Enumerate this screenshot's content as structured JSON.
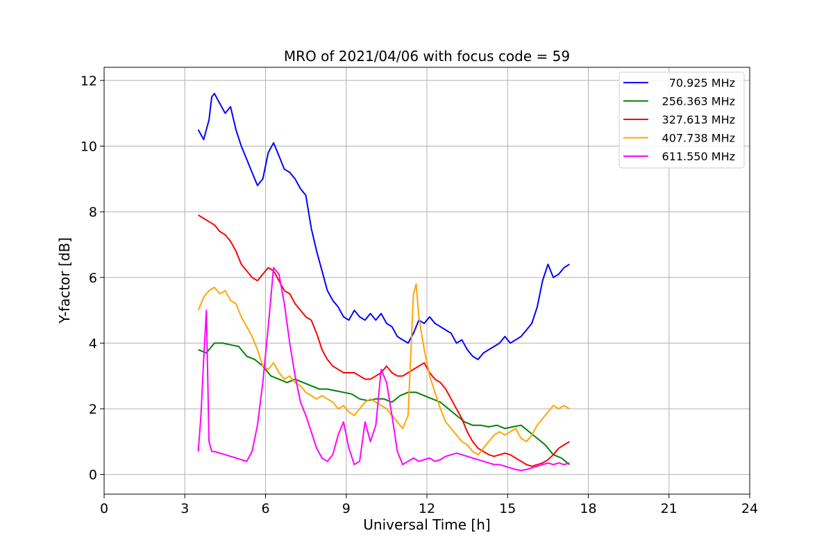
{
  "chart_data": {
    "type": "line",
    "title": "MRO of 2021/04/06 with focus code = 59",
    "xlabel": "Universal Time [h]",
    "ylabel": "Y-factor [dB]",
    "xlim": [
      0,
      24
    ],
    "ylim": [
      -0.6,
      12.4
    ],
    "xticks": [
      0,
      3,
      6,
      9,
      12,
      15,
      18,
      21,
      24
    ],
    "yticks": [
      0,
      2,
      4,
      6,
      8,
      10,
      12
    ],
    "grid": true,
    "legend_position": "upper right",
    "series": [
      {
        "name": "70.925 MHz",
        "color": "#0000ff",
        "x": [
          3.5,
          3.7,
          3.9,
          4.0,
          4.1,
          4.3,
          4.5,
          4.7,
          4.9,
          5.1,
          5.3,
          5.5,
          5.7,
          5.9,
          6.1,
          6.3,
          6.5,
          6.7,
          6.9,
          7.1,
          7.3,
          7.5,
          7.7,
          7.9,
          8.1,
          8.3,
          8.5,
          8.7,
          8.9,
          9.1,
          9.3,
          9.5,
          9.7,
          9.9,
          10.1,
          10.3,
          10.5,
          10.7,
          10.9,
          11.1,
          11.3,
          11.5,
          11.7,
          11.9,
          12.1,
          12.3,
          12.5,
          12.7,
          12.9,
          13.1,
          13.3,
          13.5,
          13.7,
          13.9,
          14.1,
          14.3,
          14.5,
          14.7,
          14.9,
          15.1,
          15.3,
          15.5,
          15.7,
          15.9,
          16.1,
          16.3,
          16.5,
          16.7,
          16.9,
          17.1,
          17.3
        ],
        "y": [
          10.5,
          10.2,
          10.8,
          11.5,
          11.6,
          11.3,
          11.0,
          11.2,
          10.5,
          10.0,
          9.6,
          9.2,
          8.8,
          9.0,
          9.8,
          10.1,
          9.7,
          9.3,
          9.2,
          9.0,
          8.7,
          8.5,
          7.5,
          6.8,
          6.2,
          5.6,
          5.3,
          5.1,
          4.8,
          4.7,
          5.0,
          4.8,
          4.7,
          4.9,
          4.7,
          4.9,
          4.6,
          4.5,
          4.2,
          4.1,
          4.0,
          4.3,
          4.7,
          4.6,
          4.8,
          4.6,
          4.5,
          4.4,
          4.3,
          4.0,
          4.1,
          3.8,
          3.6,
          3.5,
          3.7,
          3.8,
          3.9,
          4.0,
          4.2,
          4.0,
          4.1,
          4.2,
          4.4,
          4.6,
          5.1,
          5.9,
          6.4,
          6.0,
          6.1,
          6.3,
          6.4
        ]
      },
      {
        "name": "256.363 MHz",
        "color": "#008000",
        "x": [
          3.5,
          3.8,
          4.1,
          4.4,
          4.7,
          5.0,
          5.3,
          5.6,
          5.9,
          6.2,
          6.5,
          6.8,
          7.1,
          7.4,
          7.7,
          8.0,
          8.3,
          8.6,
          8.9,
          9.2,
          9.5,
          9.8,
          10.1,
          10.4,
          10.7,
          11.0,
          11.3,
          11.6,
          11.9,
          12.2,
          12.5,
          12.8,
          13.1,
          13.4,
          13.7,
          14.0,
          14.3,
          14.6,
          14.9,
          15.2,
          15.5,
          15.8,
          16.1,
          16.4,
          16.7,
          17.0,
          17.3
        ],
        "y": [
          3.8,
          3.7,
          4.0,
          4.0,
          3.95,
          3.9,
          3.6,
          3.5,
          3.3,
          3.0,
          2.9,
          2.8,
          2.9,
          2.8,
          2.7,
          2.6,
          2.6,
          2.55,
          2.5,
          2.45,
          2.3,
          2.25,
          2.3,
          2.3,
          2.2,
          2.4,
          2.5,
          2.5,
          2.4,
          2.3,
          2.2,
          2.0,
          1.8,
          1.6,
          1.5,
          1.5,
          1.45,
          1.5,
          1.4,
          1.45,
          1.5,
          1.3,
          1.1,
          0.9,
          0.6,
          0.5,
          0.3
        ]
      },
      {
        "name": "327.613 MHz",
        "color": "#ff0000",
        "x": [
          3.5,
          3.7,
          3.9,
          4.1,
          4.3,
          4.5,
          4.7,
          4.9,
          5.1,
          5.3,
          5.5,
          5.7,
          5.9,
          6.1,
          6.3,
          6.5,
          6.7,
          6.9,
          7.1,
          7.3,
          7.5,
          7.7,
          7.9,
          8.1,
          8.3,
          8.5,
          8.7,
          8.9,
          9.1,
          9.3,
          9.5,
          9.7,
          9.9,
          10.1,
          10.3,
          10.5,
          10.7,
          10.9,
          11.1,
          11.3,
          11.5,
          11.7,
          11.9,
          12.1,
          12.3,
          12.5,
          12.7,
          12.9,
          13.1,
          13.3,
          13.5,
          13.7,
          13.9,
          14.1,
          14.3,
          14.5,
          14.7,
          14.9,
          15.1,
          15.3,
          15.5,
          15.7,
          15.9,
          16.1,
          16.3,
          16.5,
          16.7,
          16.9,
          17.1,
          17.3
        ],
        "y": [
          7.9,
          7.8,
          7.7,
          7.6,
          7.4,
          7.3,
          7.1,
          6.8,
          6.4,
          6.2,
          6.0,
          5.9,
          6.1,
          6.3,
          6.2,
          5.9,
          5.6,
          5.5,
          5.2,
          5.0,
          4.8,
          4.7,
          4.3,
          3.8,
          3.5,
          3.3,
          3.2,
          3.1,
          3.1,
          3.1,
          3.0,
          2.9,
          2.9,
          3.0,
          3.1,
          3.3,
          3.1,
          3.0,
          3.0,
          3.1,
          3.2,
          3.3,
          3.4,
          3.1,
          2.9,
          2.8,
          2.6,
          2.3,
          2.0,
          1.7,
          1.3,
          1.0,
          0.8,
          0.7,
          0.6,
          0.55,
          0.6,
          0.65,
          0.6,
          0.5,
          0.4,
          0.3,
          0.25,
          0.3,
          0.35,
          0.45,
          0.6,
          0.8,
          0.9,
          1.0
        ]
      },
      {
        "name": "407.738 MHz",
        "color": "#ffa500",
        "x": [
          3.5,
          3.7,
          3.9,
          4.1,
          4.3,
          4.5,
          4.7,
          4.9,
          5.1,
          5.3,
          5.5,
          5.7,
          5.9,
          6.1,
          6.3,
          6.5,
          6.7,
          6.9,
          7.1,
          7.3,
          7.5,
          7.7,
          7.9,
          8.1,
          8.3,
          8.5,
          8.7,
          8.9,
          9.1,
          9.3,
          9.5,
          9.7,
          9.9,
          10.1,
          10.3,
          10.5,
          10.7,
          10.9,
          11.1,
          11.3,
          11.5,
          11.6,
          11.7,
          11.9,
          12.1,
          12.3,
          12.5,
          12.7,
          12.9,
          13.1,
          13.3,
          13.5,
          13.7,
          13.9,
          14.1,
          14.3,
          14.5,
          14.7,
          14.9,
          15.1,
          15.3,
          15.5,
          15.7,
          15.9,
          16.1,
          16.3,
          16.5,
          16.7,
          16.9,
          17.1,
          17.3
        ],
        "y": [
          5.0,
          5.4,
          5.6,
          5.7,
          5.5,
          5.6,
          5.3,
          5.2,
          4.8,
          4.5,
          4.2,
          3.8,
          3.3,
          3.2,
          3.4,
          3.1,
          2.9,
          3.0,
          2.8,
          2.7,
          2.5,
          2.4,
          2.3,
          2.4,
          2.3,
          2.2,
          2.0,
          2.1,
          1.9,
          1.8,
          2.0,
          2.2,
          2.3,
          2.2,
          2.1,
          2.0,
          1.8,
          1.6,
          1.4,
          1.8,
          5.5,
          5.8,
          4.8,
          3.8,
          3.0,
          2.5,
          2.0,
          1.6,
          1.4,
          1.2,
          1.0,
          0.9,
          0.7,
          0.6,
          0.8,
          1.0,
          1.2,
          1.3,
          1.2,
          1.3,
          1.4,
          1.1,
          1.0,
          1.2,
          1.5,
          1.7,
          1.9,
          2.1,
          2.0,
          2.1,
          2.0
        ]
      },
      {
        "name": "611.550 MHz",
        "color": "#ff00ff",
        "x": [
          3.5,
          3.6,
          3.7,
          3.8,
          3.9,
          4.0,
          4.1,
          4.3,
          4.5,
          4.7,
          4.9,
          5.1,
          5.3,
          5.5,
          5.7,
          5.9,
          6.1,
          6.3,
          6.5,
          6.7,
          6.9,
          7.1,
          7.3,
          7.5,
          7.7,
          7.9,
          8.1,
          8.3,
          8.5,
          8.7,
          8.9,
          9.1,
          9.3,
          9.5,
          9.7,
          9.9,
          10.1,
          10.3,
          10.5,
          10.7,
          10.9,
          11.1,
          11.3,
          11.5,
          11.7,
          11.9,
          12.1,
          12.3,
          12.5,
          12.7,
          12.9,
          13.1,
          13.3,
          13.5,
          13.7,
          13.9,
          14.1,
          14.3,
          14.5,
          14.7,
          14.9,
          15.1,
          15.3,
          15.5,
          15.7,
          15.9,
          16.1,
          16.3,
          16.5,
          16.7,
          16.9,
          17.1,
          17.3
        ],
        "y": [
          0.7,
          1.8,
          3.5,
          5.0,
          1.0,
          0.7,
          0.7,
          0.65,
          0.6,
          0.55,
          0.5,
          0.45,
          0.4,
          0.7,
          1.5,
          2.8,
          4.5,
          6.3,
          6.1,
          5.2,
          4.0,
          3.0,
          2.2,
          1.8,
          1.3,
          0.8,
          0.5,
          0.4,
          0.6,
          1.2,
          1.6,
          0.8,
          0.3,
          0.4,
          1.6,
          1.0,
          1.5,
          3.2,
          2.8,
          1.8,
          0.7,
          0.3,
          0.4,
          0.5,
          0.4,
          0.45,
          0.5,
          0.4,
          0.45,
          0.55,
          0.6,
          0.65,
          0.6,
          0.55,
          0.5,
          0.45,
          0.4,
          0.35,
          0.3,
          0.3,
          0.25,
          0.2,
          0.15,
          0.12,
          0.15,
          0.2,
          0.25,
          0.3,
          0.35,
          0.3,
          0.35,
          0.3,
          0.35
        ]
      }
    ]
  }
}
